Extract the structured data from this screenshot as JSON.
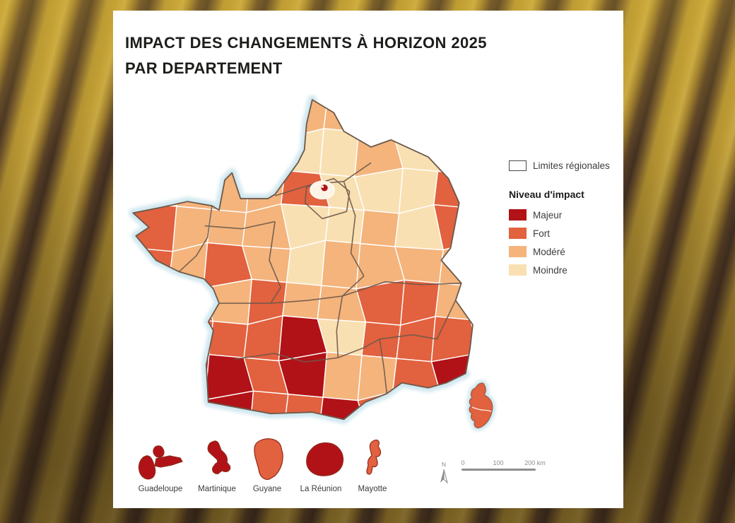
{
  "title": {
    "line1": "IMPACT DES CHANGEMENTS À HORIZON 2025",
    "line2": "PAR DEPARTEMENT"
  },
  "legend": {
    "regional_limits_label": "Limites régionales",
    "impact_title": "Niveau d'impact",
    "levels": [
      {
        "key": "J",
        "label": "Majeur",
        "color": "#b11217"
      },
      {
        "key": "F",
        "label": "Fort",
        "color": "#e2613e"
      },
      {
        "key": "M",
        "label": "Modéré",
        "color": "#f4b47c"
      },
      {
        "key": "L",
        "label": "Moindre",
        "color": "#f9e0b2"
      }
    ]
  },
  "map": {
    "type": "choropleth",
    "subject": "France par département",
    "coast_halo_color": "#cfe7ef",
    "region_border_color": "#6d594b",
    "department_border_color": "#ffffff",
    "paris_color": "#b11217",
    "corsica_level": "F",
    "grid_rows": [
      "....MM....",
      "...LLLM...",
      ".MMMFLLLF.",
      "FMMMLLMLF.",
      "FMFMLMMMM.",
      ".FMFMMFFM.",
      ".FFFJLFFF.",
      ".JJFJMMFJ.",
      ".JJFFJFJJ."
    ]
  },
  "territories": [
    {
      "name": "Guadeloupe",
      "level": "Majeur",
      "key": "J"
    },
    {
      "name": "Martinique",
      "level": "Majeur",
      "key": "J"
    },
    {
      "name": "Guyane",
      "level": "Fort",
      "key": "F"
    },
    {
      "name": "La Réunion",
      "level": "Majeur",
      "key": "J"
    },
    {
      "name": "Mayotte",
      "level": "Fort",
      "key": "F"
    }
  ],
  "scale_bar": {
    "north_label": "N",
    "ticks": [
      "0",
      "100",
      "200 km"
    ]
  }
}
